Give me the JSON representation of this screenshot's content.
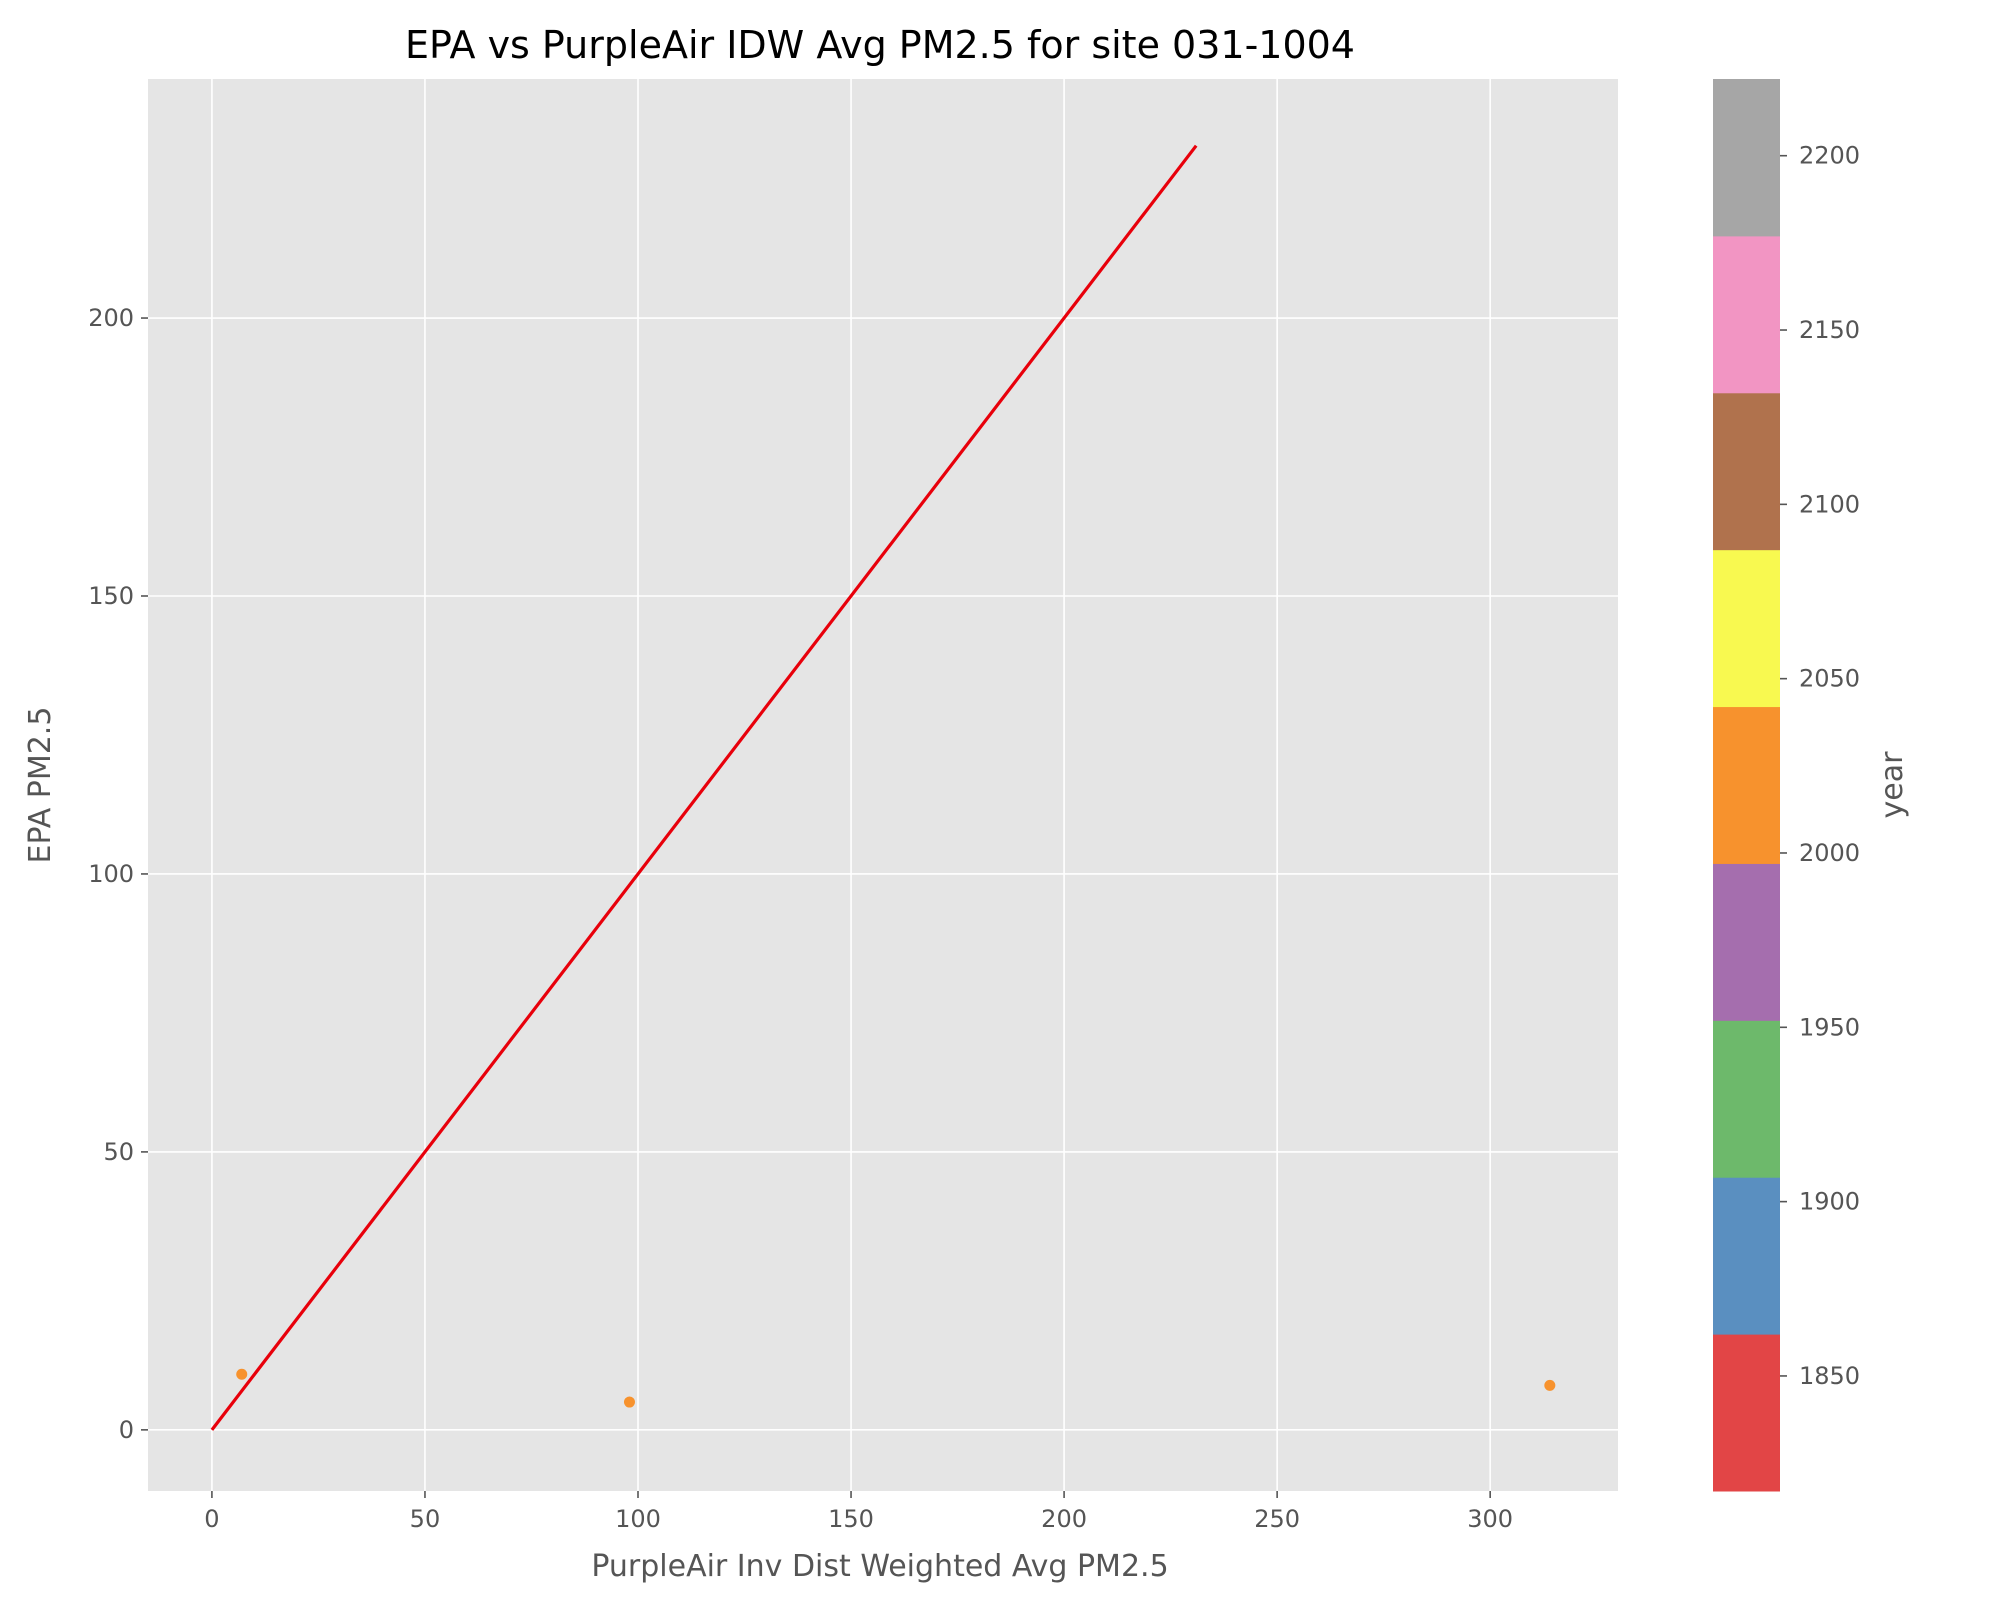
{
  "chart_data": {
    "type": "scatter",
    "title": "EPA vs PurpleAir IDW Avg PM2.5 for site 031-1004",
    "xlabel": "PurpleAir Inv Dist Weighted Avg PM2.5",
    "ylabel": "EPA PM2.5",
    "xlim": [
      -15,
      330
    ],
    "ylim": [
      -11,
      243
    ],
    "xticks": [
      0,
      50,
      100,
      150,
      200,
      250,
      300
    ],
    "yticks": [
      0,
      50,
      100,
      150,
      200
    ],
    "grid": true,
    "background_color": "#e5e5e5",
    "series": [
      {
        "points": [
          {
            "x": 7,
            "y": 10
          },
          {
            "x": 98,
            "y": 5
          },
          {
            "x": 314,
            "y": 8
          }
        ],
        "color": "#f7922d"
      }
    ],
    "reference_line": {
      "x": [
        0,
        231
      ],
      "y": [
        0,
        231
      ],
      "color": "#e8000b"
    },
    "colorbar": {
      "label": "year",
      "range": [
        1817,
        2222
      ],
      "ticks": [
        1850,
        1900,
        1950,
        2000,
        2050,
        2100,
        2150,
        2200
      ],
      "segments": [
        {
          "from": 1817,
          "to": 1862,
          "color": "#e24546"
        },
        {
          "from": 1862,
          "to": 1907,
          "color": "#5a8fc0"
        },
        {
          "from": 1907,
          "to": 1952,
          "color": "#6db96b"
        },
        {
          "from": 1952,
          "to": 1997,
          "color": "#a56eae"
        },
        {
          "from": 1997,
          "to": 2042,
          "color": "#f7922d"
        },
        {
          "from": 2042,
          "to": 2087,
          "color": "#f8f950"
        },
        {
          "from": 2087,
          "to": 2132,
          "color": "#b0724d"
        },
        {
          "from": 2132,
          "to": 2177,
          "color": "#f295c3"
        },
        {
          "from": 2177,
          "to": 2222,
          "color": "#a6a6a6"
        }
      ]
    }
  }
}
